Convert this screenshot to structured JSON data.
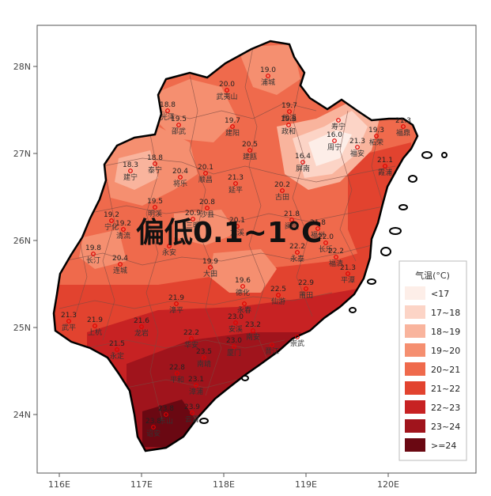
{
  "headline": "偏低0.1~1°C",
  "axes": {
    "x_ticks": [
      "116E",
      "117E",
      "118E",
      "119E",
      "120E"
    ],
    "y_ticks": [
      "28N",
      "27N",
      "26N",
      "25N",
      "24N"
    ]
  },
  "legend": {
    "title": "气温(°C)",
    "items": [
      {
        "label": "<17",
        "color": "#fdeee8"
      },
      {
        "label": "17~18",
        "color": "#fcd4c6"
      },
      {
        "label": "18~19",
        "color": "#f9b49d"
      },
      {
        "label": "19~20",
        "color": "#f58f70"
      },
      {
        "label": "20~21",
        "color": "#ef6a4c"
      },
      {
        "label": "21~22",
        "color": "#e2432f"
      },
      {
        "label": "22~23",
        "color": "#c72223"
      },
      {
        "label": "23~24",
        "color": "#a0141c"
      },
      {
        "label": ">=24",
        "color": "#6a0812"
      }
    ]
  },
  "stations": [
    {
      "name": "浦城",
      "value": "19.0"
    },
    {
      "name": "武夷山",
      "value": "20.0"
    },
    {
      "name": "光泽",
      "value": "18.8"
    },
    {
      "name": "邵武",
      "value": "19.5"
    },
    {
      "name": "建阳",
      "value": "19.7"
    },
    {
      "name": "松溪",
      "value": "19.7"
    },
    {
      "name": "政和",
      "value": "19.3"
    },
    {
      "name": "寿宁",
      "value": ""
    },
    {
      "name": "周宁",
      "value": "16.0"
    },
    {
      "name": "福安",
      "value": "21.3"
    },
    {
      "name": "柘荣",
      "value": "19.3"
    },
    {
      "name": "福鼎",
      "value": "21.3"
    },
    {
      "name": "建瓯",
      "value": "20.5"
    },
    {
      "name": "屏南",
      "value": "16.4"
    },
    {
      "name": "霞浦",
      "value": "21.1"
    },
    {
      "name": "建宁",
      "value": "18.3"
    },
    {
      "name": "泰宁",
      "value": "18.8"
    },
    {
      "name": "将乐",
      "value": "20.4"
    },
    {
      "name": "顺昌",
      "value": "20.1"
    },
    {
      "name": "延平",
      "value": "21.3"
    },
    {
      "name": "古田",
      "value": "20.2"
    },
    {
      "name": "宁化",
      "value": "19.2"
    },
    {
      "name": "清流",
      "value": "19.2"
    },
    {
      "name": "明溪",
      "value": "19.5"
    },
    {
      "name": "三明",
      "value": "20.9"
    },
    {
      "name": "沙县",
      "value": "20.8"
    },
    {
      "name": "尤溪",
      "value": "20.1"
    },
    {
      "name": "闽侯",
      "value": "21.8"
    },
    {
      "name": "福州",
      "value": "21.8"
    },
    {
      "name": "长乐",
      "value": "22.0"
    },
    {
      "name": "长汀",
      "value": "19.8"
    },
    {
      "name": "连城",
      "value": "20.4"
    },
    {
      "name": "永安",
      "value": ""
    },
    {
      "name": "大田",
      "value": "19.9"
    },
    {
      "name": "永泰",
      "value": "22.2"
    },
    {
      "name": "福清",
      "value": "22.2"
    },
    {
      "name": "德化",
      "value": "19.6"
    },
    {
      "name": "莆田",
      "value": "22.9"
    },
    {
      "name": "仙游",
      "value": "22.5"
    },
    {
      "name": "平潭",
      "value": "21.3"
    },
    {
      "name": "武平",
      "value": "21.3"
    },
    {
      "name": "上杭",
      "value": "21.9"
    },
    {
      "name": "龙岩",
      "value": "21.6"
    },
    {
      "name": "漳平",
      "value": "21.9"
    },
    {
      "name": "永春",
      "value": ""
    },
    {
      "name": "安溪",
      "value": "23.0"
    },
    {
      "name": "南安",
      "value": "23.2"
    },
    {
      "name": "崇武",
      "value": ""
    },
    {
      "name": "晋江",
      "value": ""
    },
    {
      "name": "华安",
      "value": "22.2"
    },
    {
      "name": "永定",
      "value": "21.5"
    },
    {
      "name": "南靖",
      "value": "23.5"
    },
    {
      "name": "厦门",
      "value": "23.0"
    },
    {
      "name": "漳浦",
      "value": "23.1"
    },
    {
      "name": "平和",
      "value": "22.8"
    },
    {
      "name": "云霄",
      "value": "23.9"
    },
    {
      "name": "东山",
      "value": "23.8"
    },
    {
      "name": "诏安",
      "value": "23.8"
    }
  ]
}
